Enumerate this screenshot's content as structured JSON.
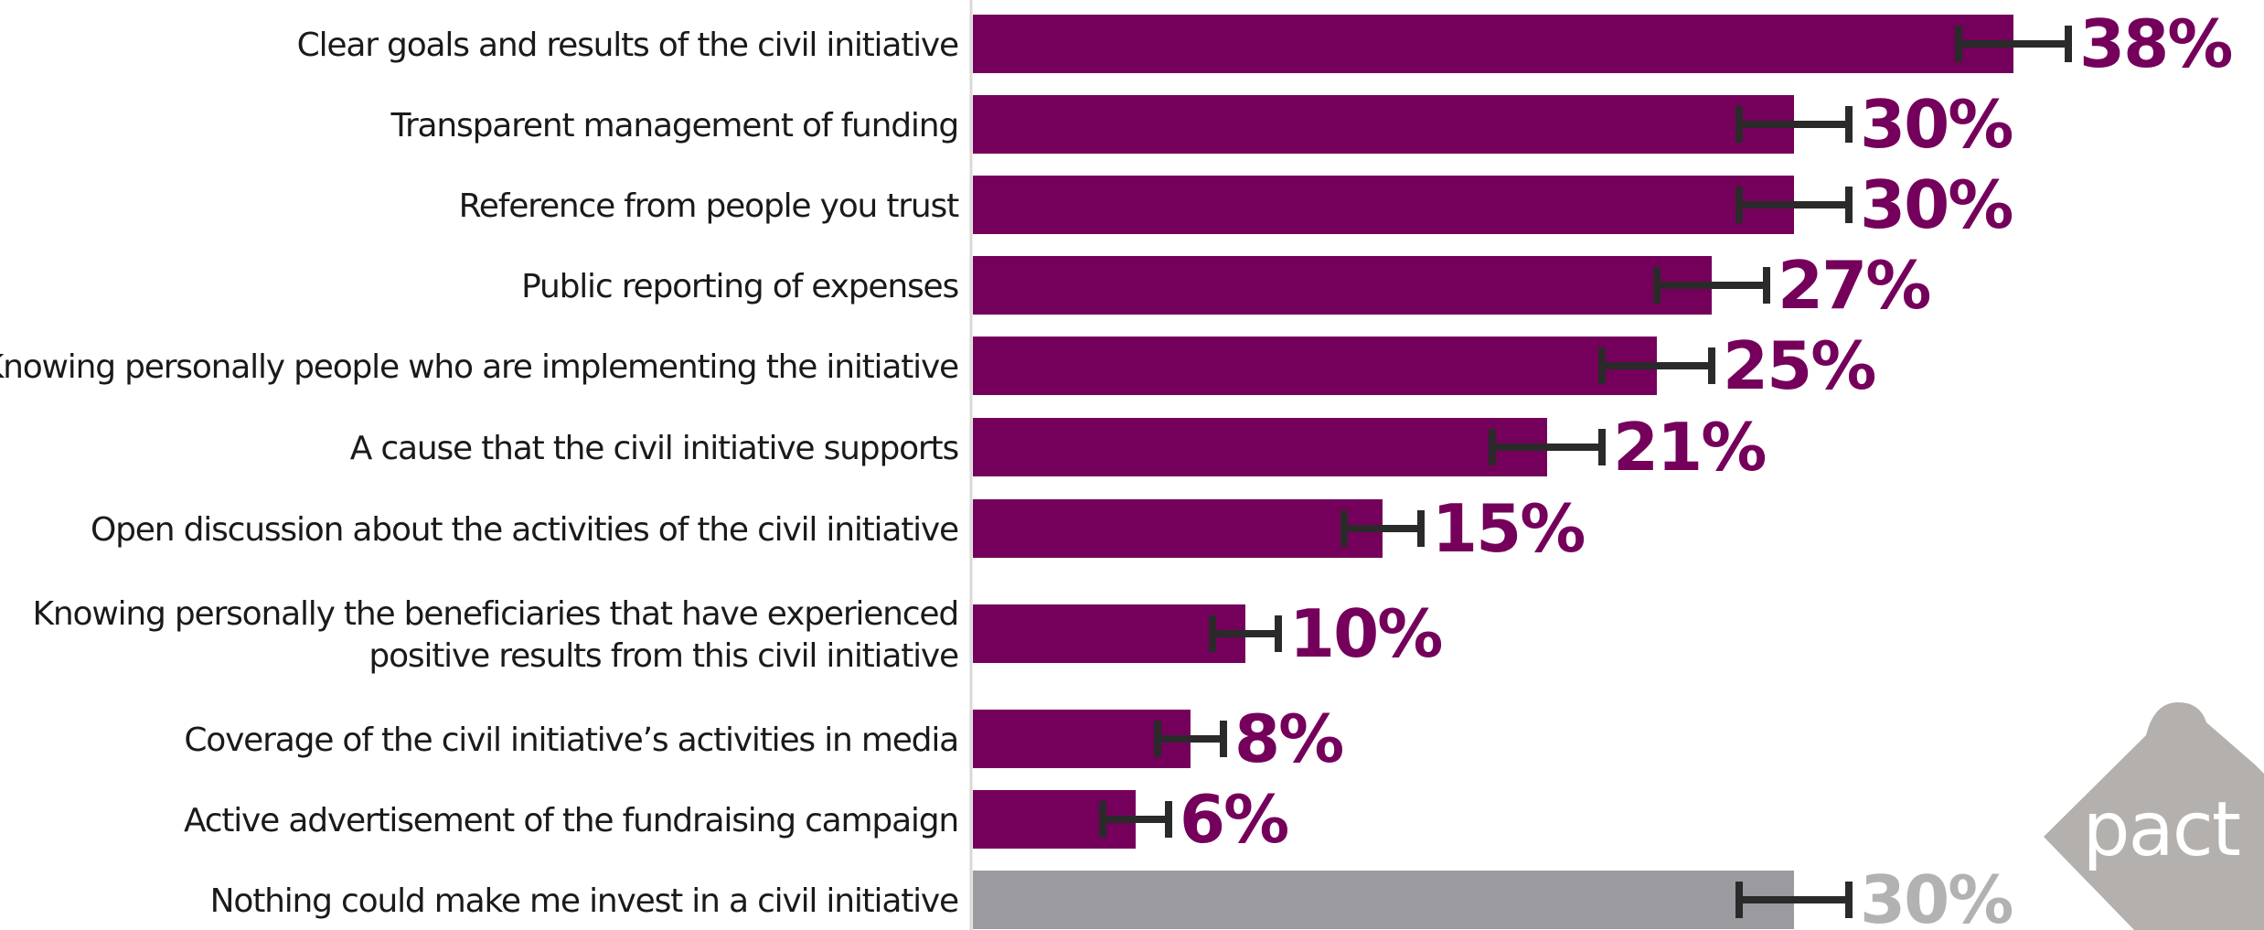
{
  "chart_data": {
    "type": "bar",
    "orientation": "horizontal",
    "xlim": [
      0,
      100
    ],
    "categories": [
      [
        "Clear goals and results of the civil initiative"
      ],
      [
        "Transparent management of funding"
      ],
      [
        "Reference from people you trust"
      ],
      [
        "Public reporting of expenses"
      ],
      [
        "Knowing personally people who are implementing the initiative"
      ],
      [
        "A cause that the civil initiative supports"
      ],
      [
        "Open discussion about the activities of the civil initiative"
      ],
      [
        "Knowing personally the beneficiaries that have experienced",
        "positive results from this civil initiative"
      ],
      [
        "Coverage of the civil initiative’s activities in media"
      ],
      [
        "Active advertisement of the fundraising campaign"
      ],
      [
        "Nothing could make me invest in a civil initiative"
      ]
    ],
    "values": [
      38,
      30,
      30,
      27,
      25,
      21,
      15,
      10,
      8,
      6,
      30
    ],
    "error_low": [
      36,
      28,
      28,
      25,
      23,
      19,
      13.6,
      8.8,
      6.8,
      4.8,
      28
    ],
    "error_high": [
      40,
      32,
      32,
      29,
      27,
      23,
      16.4,
      11.2,
      9.2,
      7.2,
      32
    ],
    "value_labels": [
      "38%",
      "30%",
      "30%",
      "27%",
      "25%",
      "21%",
      "15%",
      "10%",
      "8%",
      "6%",
      "30%"
    ],
    "bar_colors": [
      "#75005b",
      "#75005b",
      "#75005b",
      "#75005b",
      "#75005b",
      "#75005b",
      "#75005b",
      "#75005b",
      "#75005b",
      "#75005b",
      "#9b9b9f"
    ],
    "value_label_colors": [
      "#75005b",
      "#75005b",
      "#75005b",
      "#75005b",
      "#75005b",
      "#75005b",
      "#75005b",
      "#75005b",
      "#75005b",
      "#75005b",
      "#b2b2b2"
    ],
    "error_bar_color": "#2a2a2a",
    "axis_line_color": "#d9d9d9"
  },
  "logo": {
    "text": "pact",
    "color": "#b4b0ad",
    "text_color": "#ffffff"
  }
}
